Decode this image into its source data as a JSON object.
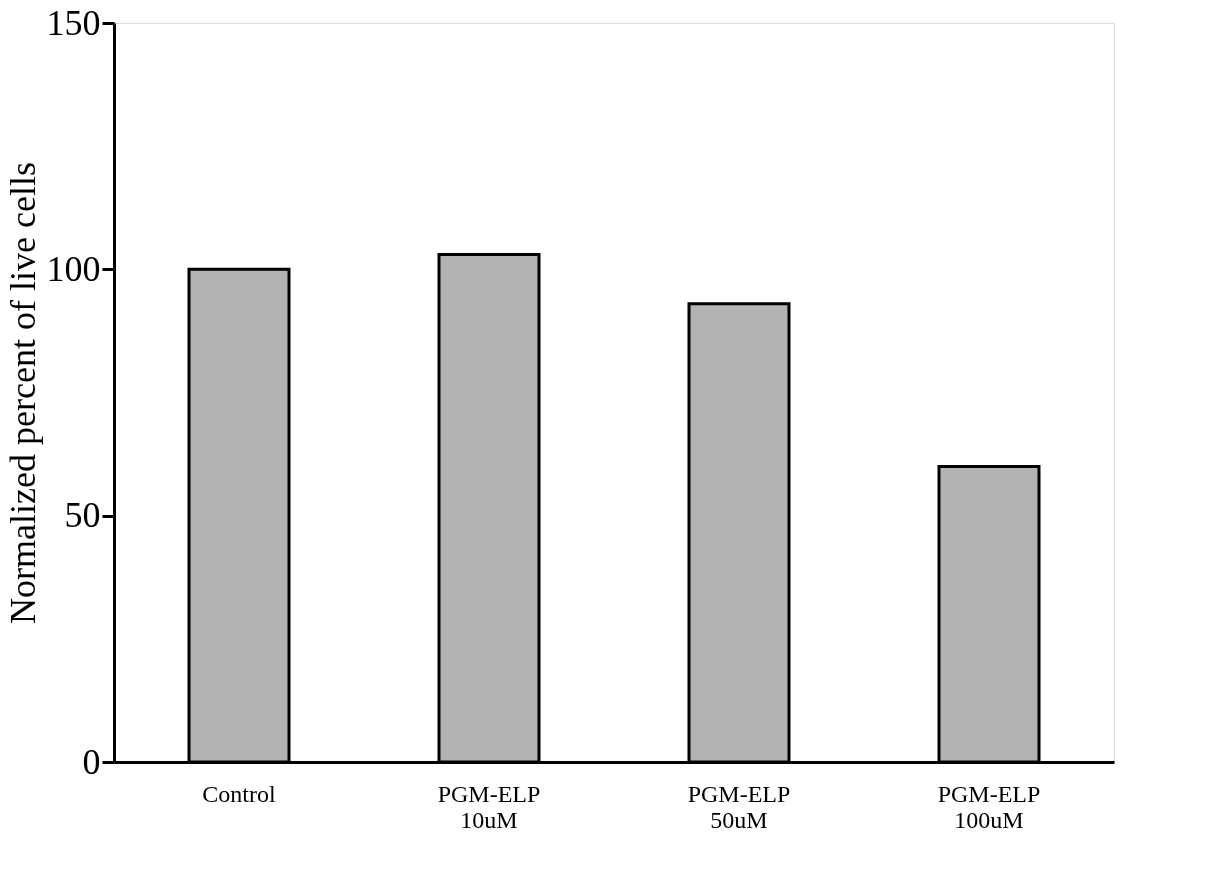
{
  "chart_data": {
    "type": "bar",
    "ylabel": "Normalized percent of live cells",
    "categories": [
      "Control",
      "PGM-ELP 10uM",
      "PGM-ELP 50uM",
      "PGM-ELP 100uM"
    ],
    "values": [
      100,
      103,
      93,
      60
    ],
    "color": "#b3b3b3",
    "ylim": [
      0,
      150
    ],
    "yticks": [
      0,
      50,
      100,
      150
    ],
    "grid": false
  }
}
